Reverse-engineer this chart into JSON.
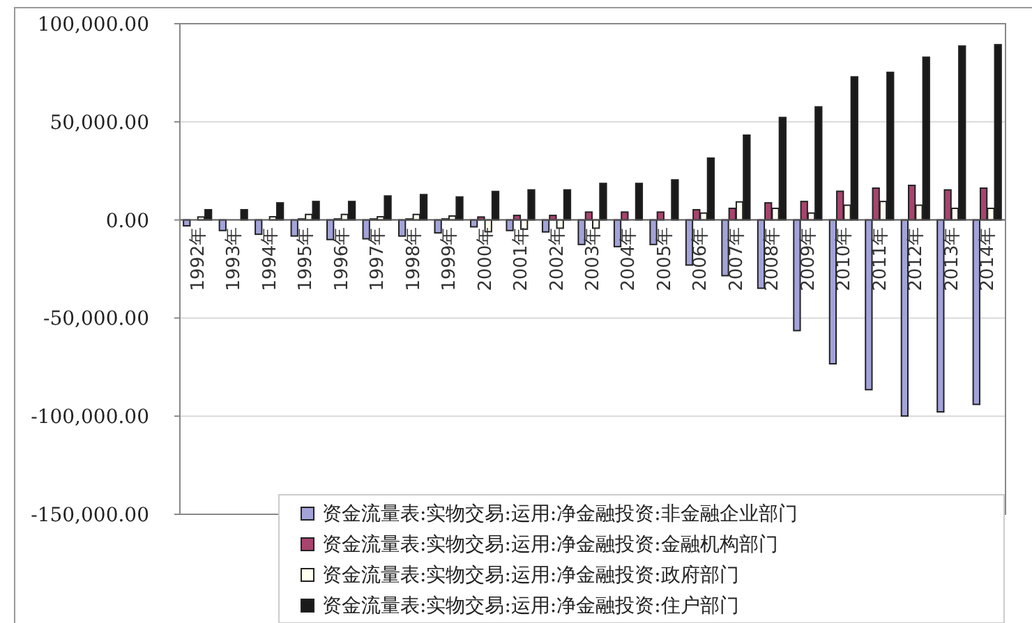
{
  "chart_data": {
    "type": "bar",
    "categories": [
      "1992年",
      "1993年",
      "1994年",
      "1995年",
      "1996年",
      "1997年",
      "1998年",
      "1999年",
      "2000年",
      "2001年",
      "2002年",
      "2003年",
      "2004年",
      "2005年",
      "2006年",
      "2007年",
      "2008年",
      "2009年",
      "2010年",
      "2011年",
      "2012年",
      "2013年",
      "2014年"
    ],
    "series": [
      {
        "name": "资金流量表:实物交易:运用:净金融投资:非金融企业部门",
        "color": "#a3a3d9",
        "values": [
          -3000,
          -5400,
          -7300,
          -8200,
          -10000,
          -9600,
          -8200,
          -6600,
          -3500,
          -5400,
          -6100,
          -12500,
          -13600,
          -12500,
          -23000,
          -28400,
          -34800,
          -56400,
          -73300,
          -86500,
          -99900,
          -97800,
          -94000
        ]
      },
      {
        "name": "资金流量表:实物交易:运用:净金融投资:金融机构部门",
        "color": "#a8446e",
        "values": [
          null,
          null,
          null,
          500,
          500,
          500,
          500,
          500,
          1500,
          2300,
          2300,
          4000,
          4000,
          4000,
          5200,
          5900,
          8700,
          9400,
          14600,
          16200,
          17600,
          15300,
          16200
        ]
      },
      {
        "name": "资金流量表:实物交易:运用:净金融投资:政府部门",
        "color": "#fffff0",
        "values": [
          1500,
          null,
          1600,
          2800,
          2800,
          1600,
          2800,
          2000,
          -6000,
          -4700,
          -4200,
          -4200,
          null,
          null,
          3500,
          9200,
          5900,
          3500,
          7500,
          9400,
          7500,
          5900,
          5900
        ]
      },
      {
        "name": "资金流量表:实物交易:运用:净金融投资:住户部门",
        "color": "#1a1a1a",
        "values": [
          5200,
          5200,
          8700,
          9400,
          9400,
          12200,
          12900,
          11700,
          14500,
          15300,
          15300,
          18600,
          18600,
          20400,
          31500,
          43200,
          52200,
          57600,
          72900,
          75200,
          82900,
          88600,
          89300
        ]
      }
    ],
    "ylim": [
      -150000,
      100000
    ],
    "yticks": [
      {
        "value": -150000,
        "label": "-150,000.00"
      },
      {
        "value": -100000,
        "label": "-100,000.00"
      },
      {
        "value": -50000,
        "label": "-50,000.00"
      },
      {
        "value": 0,
        "label": "0.00"
      },
      {
        "value": 50000,
        "label": "50,000.00"
      },
      {
        "value": 100000,
        "label": "100,000.00"
      }
    ],
    "grid": "y",
    "legend": "bottom"
  }
}
